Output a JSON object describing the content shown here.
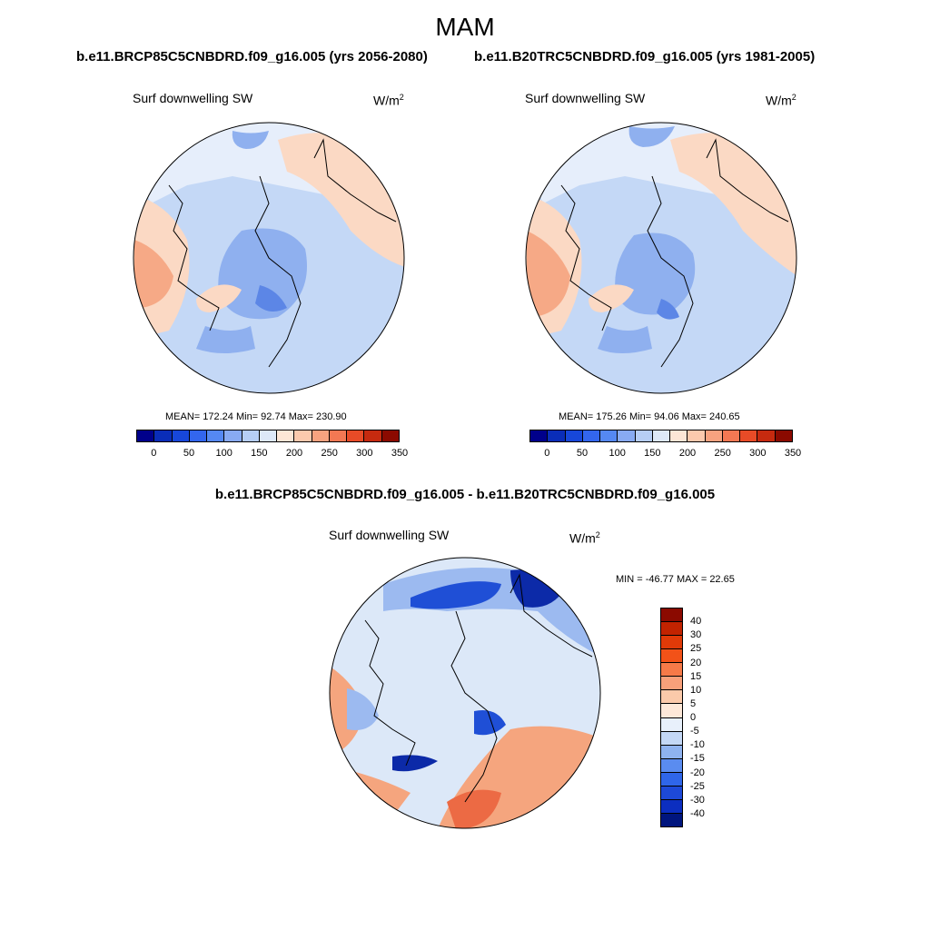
{
  "figure": {
    "title": "MAM",
    "left_case": "b.e11.BRCP85C5CNBDRD.f09_g16.005 (yrs 2056-2080)",
    "right_case": "b.e11.B20TRC5CNBDRD.f09_g16.005 (yrs 1981-2005)",
    "diff_title": "b.e11.BRCP85C5CNBDRD.f09_g16.005 - b.e11.B20TRC5CNBDRD.f09_g16.005"
  },
  "panels": {
    "left": {
      "variable": "Surf downwelling SW",
      "unit": "W/m",
      "unit_exp": "2",
      "stats": "MEAN= 172.24  Min=  92.74  Max= 230.90"
    },
    "right": {
      "variable": "Surf downwelling SW",
      "unit": "W/m",
      "unit_exp": "2",
      "stats": "MEAN= 175.26  Min=  94.06  Max= 240.65"
    },
    "diff": {
      "variable": "Surf downwelling SW",
      "unit": "W/m",
      "unit_exp": "2",
      "stats": "MIN = -46.77 MAX =  22.65"
    }
  },
  "colorbar_abs": {
    "ticks": [
      "0",
      "50",
      "100",
      "150",
      "200",
      "250",
      "300",
      "350"
    ],
    "colors": [
      "#00008b",
      "#0a2db8",
      "#1747d9",
      "#3366ee",
      "#5588f2",
      "#88aaf2",
      "#b6cdf5",
      "#dde8f8",
      "#fde6d6",
      "#fbc9ad",
      "#f7a27f",
      "#f37853",
      "#e84b27",
      "#c62a0f",
      "#8b0a00"
    ]
  },
  "colorbar_diff": {
    "labels": [
      "40",
      "30",
      "25",
      "20",
      "15",
      "10",
      "5",
      "0",
      "-5",
      "-10",
      "-15",
      "-20",
      "-25",
      "-30",
      "-40"
    ],
    "colors": [
      "#8b0a00",
      "#c22300",
      "#e03a08",
      "#f25218",
      "#f67a48",
      "#f8a07a",
      "#fbcaaa",
      "#fde8d8",
      "#e8f0fb",
      "#c4d8f6",
      "#8fb3f0",
      "#5a8cf0",
      "#2f66ea",
      "#1d49d8",
      "#0c2ec0",
      "#00157e"
    ]
  },
  "map_colors": {
    "abs_ocean_blue": "#c4d8f6",
    "abs_mid_blue": "#8fb0ef",
    "abs_deep_blue": "#5c86e6",
    "abs_peach": "#fbd9c4",
    "abs_orange": "#f6a986",
    "abs_light": "#e6eefb",
    "diff_base": "#dce8f8",
    "diff_blue": "#9cbaf0",
    "diff_dark": "#1f4fd6",
    "diff_navy": "#0c2aa8",
    "diff_orange": "#f5a57e",
    "diff_red": "#ec6a44"
  }
}
